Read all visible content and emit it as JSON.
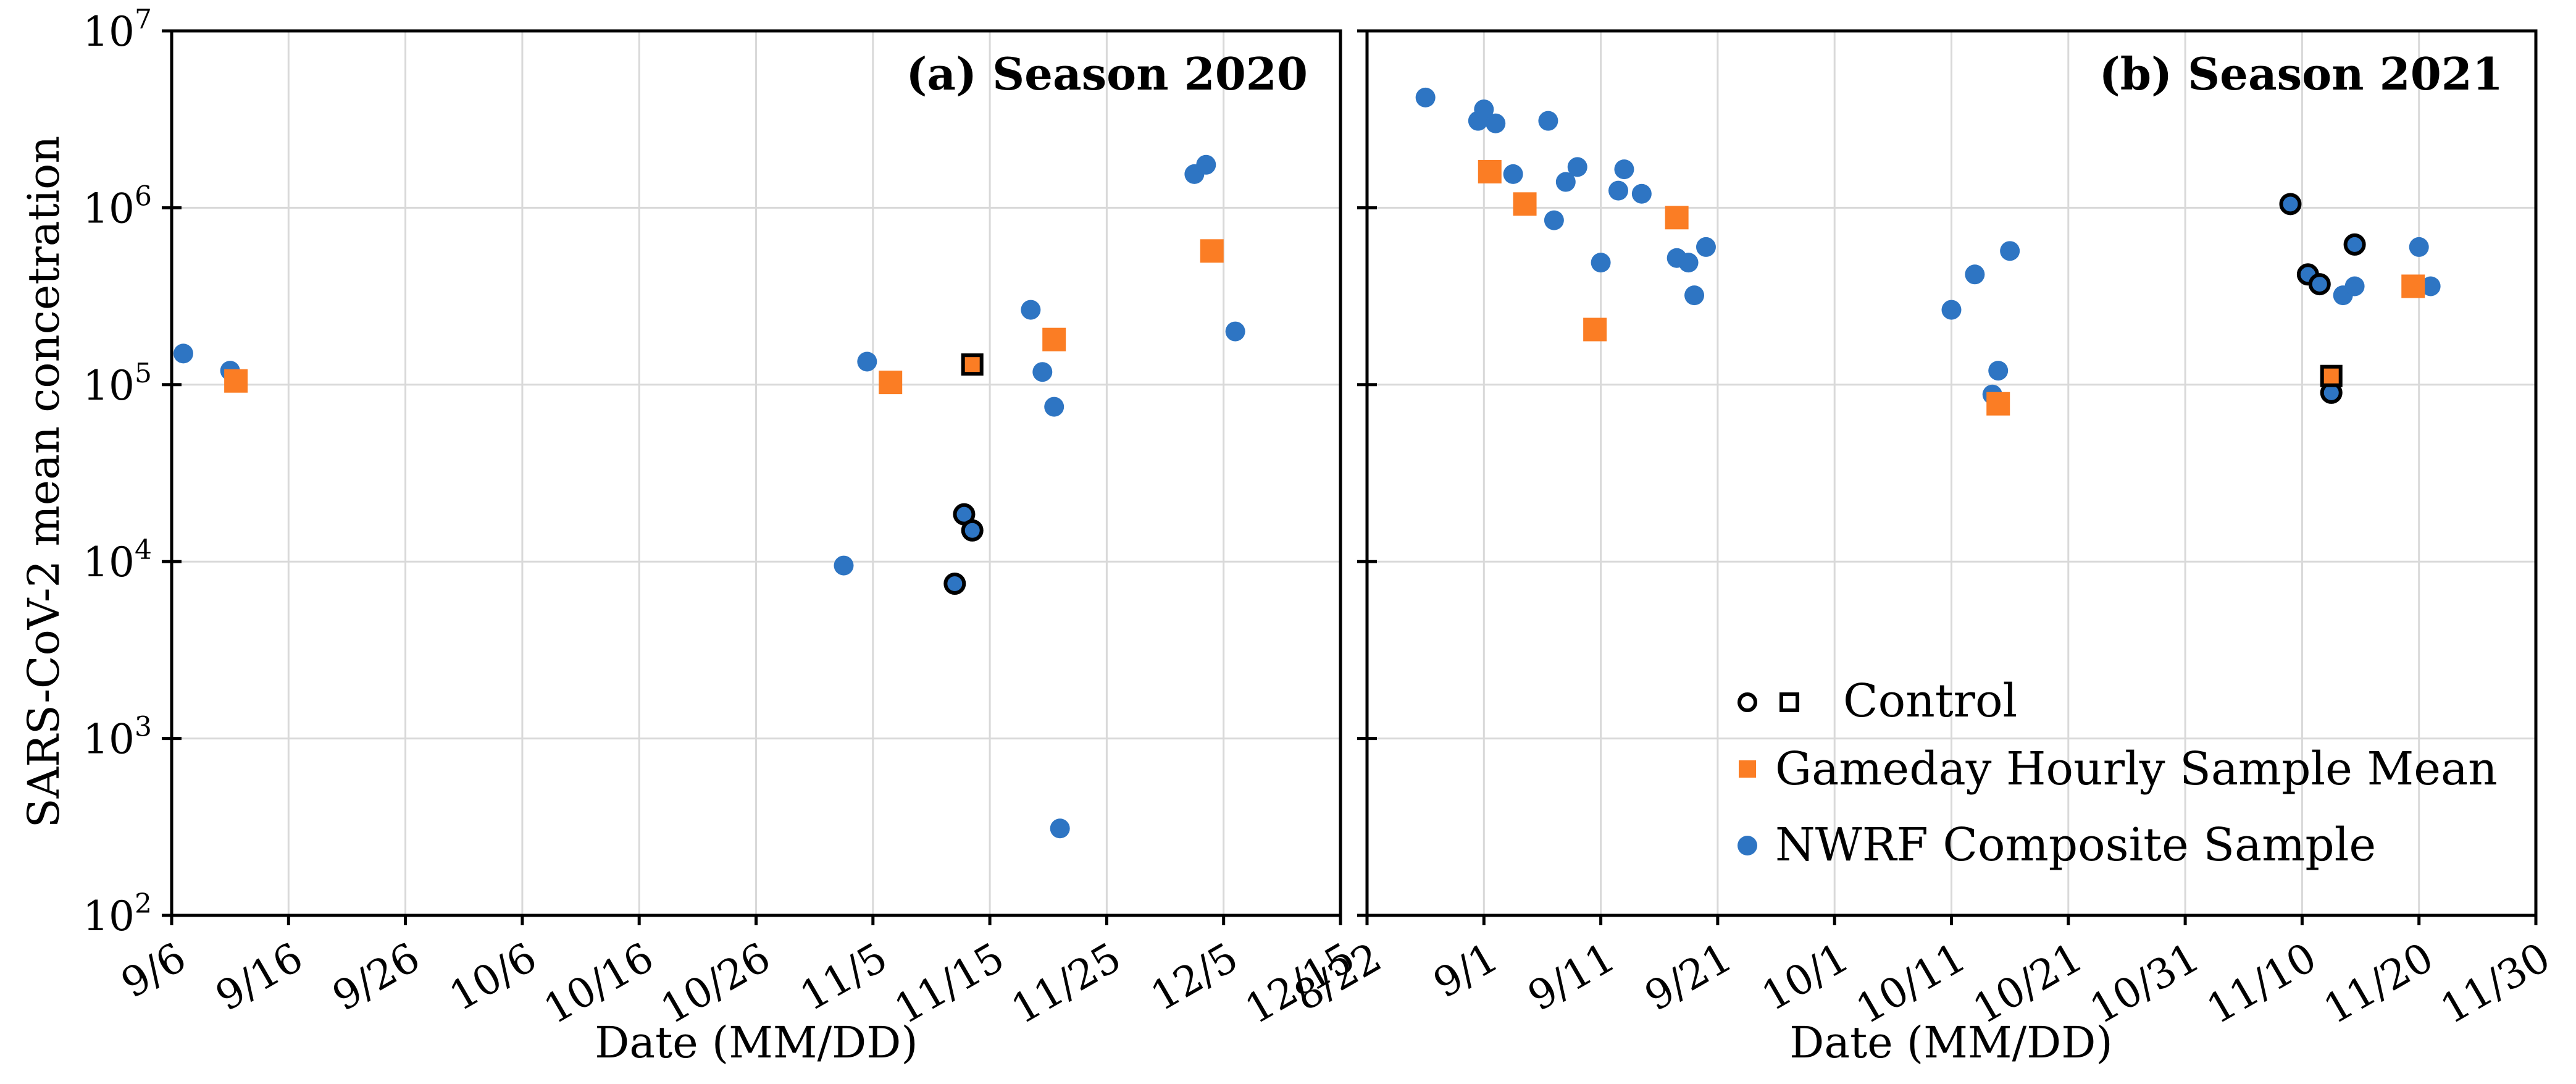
{
  "chart_data": {
    "type": "scatter",
    "ylabel": "SARS-CoV-2 mean concetration",
    "yscale": "log",
    "ylim_exp": [
      2,
      7
    ],
    "ytick_base": "10",
    "ytick_exponents": [
      "2",
      "3",
      "4",
      "5",
      "6",
      "7"
    ],
    "grid": true,
    "legend_position": "bottom-right",
    "legend": [
      {
        "key": "control",
        "label": "Control",
        "marker": "open-circle-and-square"
      },
      {
        "key": "gameday",
        "label": "Gameday Hourly Sample Mean",
        "marker": "orange-square"
      },
      {
        "key": "nwrf",
        "label": "NWRF Composite Sample",
        "marker": "blue-circle"
      }
    ],
    "colors": {
      "nwrf": "#2e75c3",
      "gameday": "#fb7d24",
      "control_edge": "#000000",
      "grid": "#d9d9d9"
    },
    "panels": [
      {
        "title": "(a) Season 2020",
        "xlabel": "Date (MM/DD)",
        "xlim_days": [
          0,
          100
        ],
        "x_ticks": [
          "9/6",
          "9/16",
          "9/26",
          "10/6",
          "10/16",
          "10/26",
          "11/5",
          "11/15",
          "11/25",
          "12/5",
          "12/15"
        ],
        "x_note": "x = days after 9/6/2020",
        "series": [
          {
            "name": "NWRF Composite Sample",
            "marker": "circle",
            "points": [
              [
                1,
                150000
              ],
              [
                5,
                120000
              ],
              [
                57.5,
                9500
              ],
              [
                59.5,
                135000
              ],
              [
                73.5,
                265000
              ],
              [
                74.5,
                118000
              ],
              [
                75.5,
                75000
              ],
              [
                76,
                310
              ],
              [
                87.5,
                1550000
              ],
              [
                88.5,
                1750000
              ],
              [
                91,
                200000
              ]
            ]
          },
          {
            "name": "Gameday Hourly Sample Mean",
            "marker": "square",
            "points": [
              [
                5.5,
                105000
              ],
              [
                61.5,
                103000
              ],
              [
                75.5,
                180000
              ],
              [
                89,
                570000
              ]
            ]
          },
          {
            "name": "Control",
            "marker": "circle-outlined",
            "points": [
              [
                67,
                7500
              ],
              [
                67.8,
                18500
              ],
              [
                68.5,
                15000
              ]
            ]
          },
          {
            "name": "Control",
            "marker": "square-outlined",
            "points": [
              [
                68.5,
                130000
              ]
            ]
          }
        ]
      },
      {
        "title": "(b) Season 2021",
        "xlabel": "Date (MM/DD)",
        "xlim_days": [
          0,
          100
        ],
        "x_ticks": [
          "8/22",
          "9/1",
          "9/11",
          "9/21",
          "10/1",
          "10/11",
          "10/21",
          "10/31",
          "11/10",
          "11/20",
          "11/30"
        ],
        "x_note": "x = days after 8/22/2021",
        "series": [
          {
            "name": "NWRF Composite Sample",
            "marker": "circle",
            "points": [
              [
                5,
                4200000
              ],
              [
                9.5,
                3100000
              ],
              [
                10,
                3600000
              ],
              [
                11,
                3000000
              ],
              [
                12.5,
                1550000
              ],
              [
                15.5,
                3100000
              ],
              [
                16,
                850000
              ],
              [
                17,
                1400000
              ],
              [
                18,
                1700000
              ],
              [
                20,
                490000
              ],
              [
                21.5,
                1250000
              ],
              [
                22,
                1650000
              ],
              [
                23.5,
                1200000
              ],
              [
                26.5,
                520000
              ],
              [
                27.5,
                490000
              ],
              [
                28,
                320000
              ],
              [
                29,
                600000
              ],
              [
                50,
                265000
              ],
              [
                52,
                420000
              ],
              [
                53.5,
                88000
              ],
              [
                54,
                120000
              ],
              [
                55,
                570000
              ],
              [
                83.5,
                320000
              ],
              [
                84.5,
                360000
              ],
              [
                90,
                600000
              ],
              [
                91,
                360000
              ]
            ]
          },
          {
            "name": "Gameday Hourly Sample Mean",
            "marker": "square",
            "points": [
              [
                10.5,
                1600000
              ],
              [
                13.5,
                1050000
              ],
              [
                19.5,
                205000
              ],
              [
                26.5,
                880000
              ],
              [
                54,
                78000
              ],
              [
                89.5,
                360000
              ]
            ]
          },
          {
            "name": "Control",
            "marker": "circle-outlined",
            "points": [
              [
                79,
                1050000
              ],
              [
                80.5,
                420000
              ],
              [
                81.5,
                370000
              ],
              [
                82.5,
                90000
              ],
              [
                84.5,
                620000
              ]
            ]
          },
          {
            "name": "Control",
            "marker": "square-outlined",
            "points": [
              [
                82.5,
                112000
              ]
            ]
          }
        ]
      }
    ]
  }
}
